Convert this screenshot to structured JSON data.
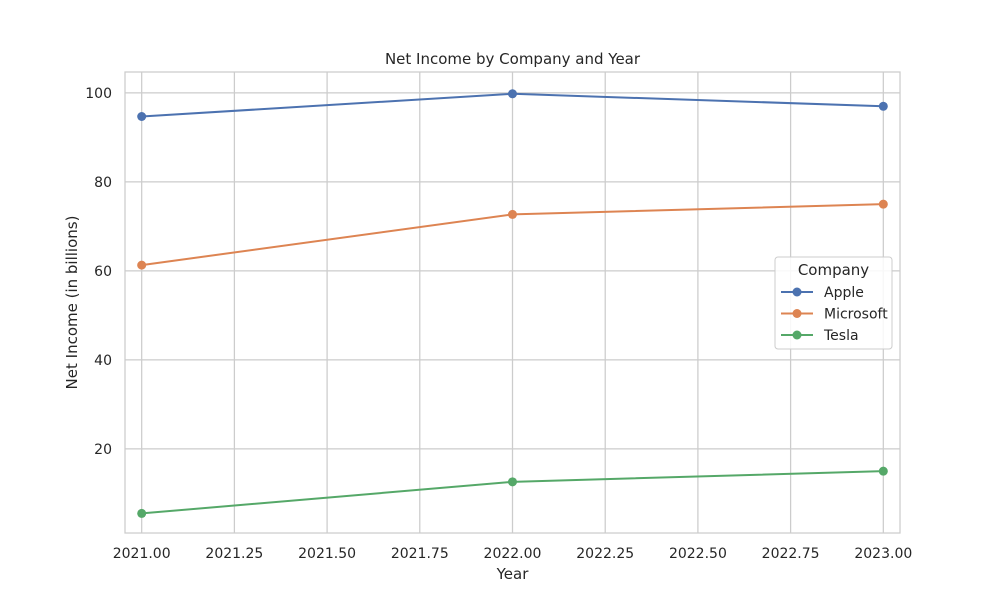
{
  "chart_data": {
    "type": "line",
    "title": "Net Income by Company and Year",
    "xlabel": "Year",
    "ylabel": "Net Income (in billions)",
    "x": [
      2021,
      2022,
      2023
    ],
    "xlim": [
      2020.955,
      2023.045
    ],
    "ylim": [
      1.1,
      104.7
    ],
    "xticks": [
      "2021.00",
      "2021.25",
      "2021.50",
      "2021.75",
      "2022.00",
      "2022.25",
      "2022.50",
      "2022.75",
      "2023.00"
    ],
    "yticks": [
      "20",
      "40",
      "60",
      "80",
      "100"
    ],
    "grid": true,
    "legend": {
      "title": "Company",
      "placement": "center-right"
    },
    "series": [
      {
        "name": "Apple",
        "color": "#4c72b0",
        "values": [
          94.7,
          99.8,
          97.0
        ]
      },
      {
        "name": "Microsoft",
        "color": "#dd8452",
        "values": [
          61.3,
          72.7,
          75.0
        ]
      },
      {
        "name": "Tesla",
        "color": "#55a868",
        "values": [
          5.5,
          12.6,
          15.0
        ]
      }
    ]
  }
}
